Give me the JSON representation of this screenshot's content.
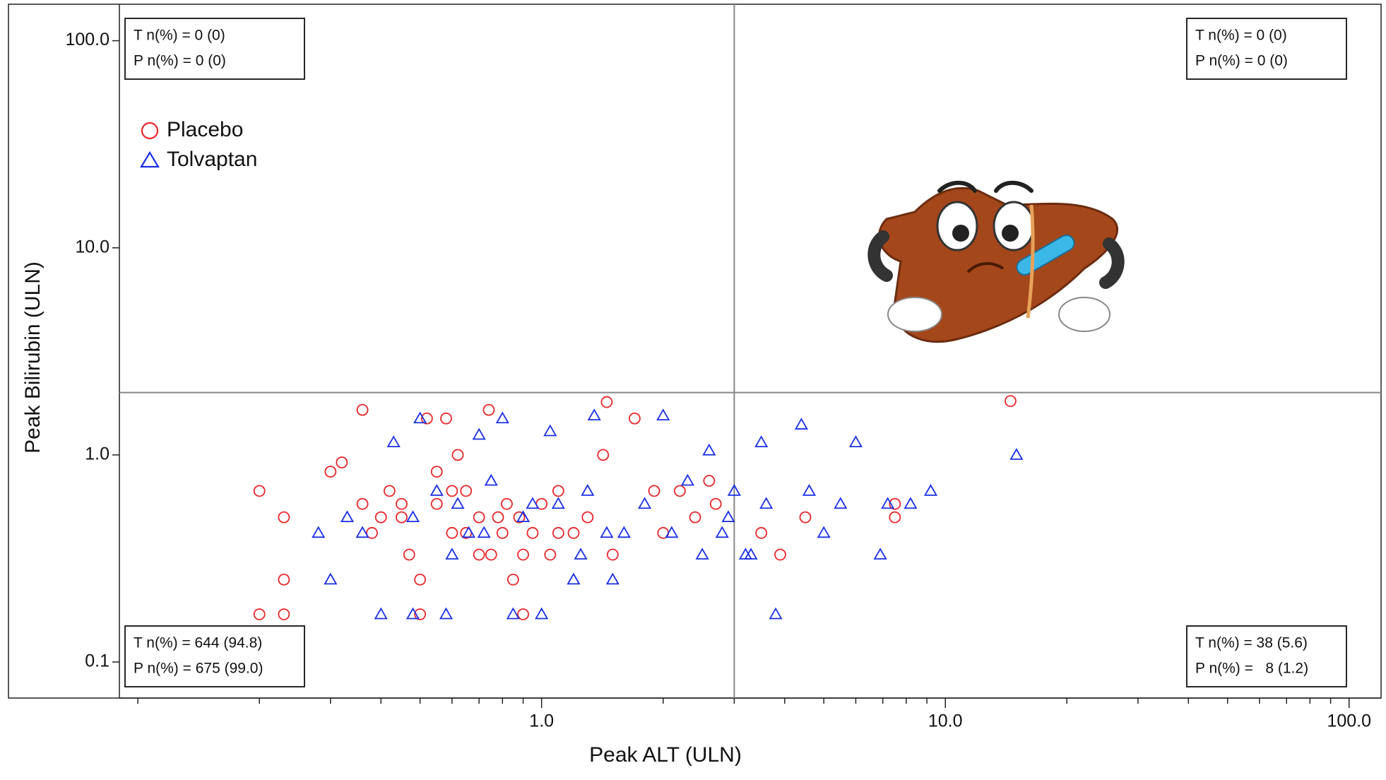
{
  "chart_data": {
    "type": "scatter",
    "x_label": "Peak ALT (ULN)",
    "y_label": "Peak Bilirubin (ULN)",
    "log_x": true,
    "log_y": true,
    "xlim": [
      0.09,
      120
    ],
    "ylim": [
      0.067,
      150
    ],
    "xticks": [
      {
        "value": 1,
        "label": "1.0"
      },
      {
        "value": 10,
        "label": "10.0"
      },
      {
        "value": 100,
        "label": "100.0"
      }
    ],
    "xminor_ticks": [
      0.1,
      0.2,
      0.3,
      0.4,
      0.5,
      0.6,
      0.7,
      0.8,
      0.9,
      2,
      3,
      4,
      5,
      6,
      7,
      8,
      9,
      20,
      30,
      40,
      50,
      60,
      70,
      80,
      90
    ],
    "yticks": [
      0.1,
      {
        "value": 1,
        "label": "1.0"
      },
      {
        "value": 10,
        "label": "10.0"
      },
      {
        "value": 100,
        "label": "100.0"
      }
    ],
    "reference_lines": {
      "x": 3,
      "y": 2
    },
    "legend_position": "upper-left",
    "annotations": [
      {
        "position": "top-left",
        "lines": [
          "T n(%) = 0 (0)",
          "P n(%) = 0 (0)"
        ]
      },
      {
        "position": "top-right",
        "lines": [
          "T n(%) = 0 (0)",
          "P n(%) = 0 (0)"
        ]
      },
      {
        "position": "bottom-left",
        "lines": [
          "T n(%) = 644 (94.8)",
          "P n(%) = 675 (99.0)"
        ]
      },
      {
        "position": "bottom-right",
        "lines": [
          "T n(%) = 38 (5.6)",
          "P n(%) =   8 (1.2)"
        ]
      }
    ],
    "series": [
      {
        "name": "Placebo",
        "color": "#e8262a",
        "marker": "circle",
        "x": [
          0.2,
          0.2,
          0.23,
          0.23,
          0.23,
          0.3,
          0.32,
          0.36,
          0.36,
          0.38,
          0.42,
          0.45,
          0.47,
          0.5,
          0.52,
          0.55,
          0.58,
          0.6,
          0.62,
          0.65,
          0.7,
          0.74,
          0.78,
          0.82,
          0.85,
          0.9,
          0.95,
          1.0,
          1.05,
          1.1,
          1.2,
          1.3,
          1.42,
          1.45,
          1.5,
          1.7,
          1.9,
          2.0,
          2.2,
          2.4,
          2.6,
          2.7,
          3.5,
          3.9,
          4.5,
          7.5,
          7.5,
          14.5,
          0.4,
          0.55,
          0.65,
          0.75,
          0.88,
          1.1,
          0.5,
          0.6,
          0.7,
          0.8,
          0.45,
          0.9
        ],
        "values": [
          0.67,
          0.17,
          0.17,
          0.5,
          0.25,
          0.83,
          0.92,
          1.65,
          0.58,
          0.42,
          0.67,
          0.5,
          0.33,
          0.17,
          1.5,
          0.83,
          1.5,
          0.42,
          1.0,
          0.67,
          0.33,
          1.65,
          0.5,
          0.58,
          0.25,
          0.17,
          0.42,
          0.58,
          0.33,
          0.67,
          0.42,
          0.5,
          1.0,
          1.8,
          0.33,
          1.5,
          0.67,
          0.42,
          0.67,
          0.5,
          0.75,
          0.58,
          0.42,
          0.33,
          0.5,
          0.58,
          0.5,
          1.82,
          0.5,
          0.58,
          0.42,
          0.33,
          0.5,
          0.42,
          0.25,
          0.67,
          0.5,
          0.42,
          0.58,
          0.33
        ]
      },
      {
        "name": "Tolvaptan",
        "color": "#1a2ee6",
        "marker": "triangle",
        "x": [
          0.28,
          0.3,
          0.33,
          0.36,
          0.4,
          0.43,
          0.48,
          0.5,
          0.55,
          0.58,
          0.62,
          0.66,
          0.7,
          0.75,
          0.8,
          0.85,
          0.9,
          1.0,
          1.05,
          1.1,
          1.2,
          1.3,
          1.35,
          1.5,
          1.6,
          1.8,
          2.0,
          2.1,
          2.3,
          2.5,
          2.6,
          2.8,
          3.0,
          3.2,
          3.5,
          3.6,
          3.8,
          4.4,
          4.6,
          5.0,
          5.5,
          6.0,
          6.9,
          7.2,
          8.2,
          9.2,
          15,
          0.48,
          0.6,
          0.72,
          0.95,
          1.25,
          1.45,
          2.9,
          3.3
        ],
        "values": [
          0.42,
          0.25,
          0.5,
          0.42,
          0.17,
          1.15,
          0.17,
          1.5,
          0.67,
          0.17,
          0.58,
          0.42,
          1.25,
          0.75,
          1.5,
          0.17,
          0.5,
          0.17,
          1.3,
          0.58,
          0.25,
          0.67,
          1.55,
          0.25,
          0.42,
          0.58,
          1.55,
          0.42,
          0.75,
          0.33,
          1.05,
          0.42,
          0.67,
          0.33,
          1.15,
          0.58,
          0.17,
          1.4,
          0.67,
          0.42,
          0.58,
          1.15,
          0.33,
          0.58,
          0.58,
          0.67,
          1.0,
          0.5,
          0.33,
          0.42,
          0.58,
          0.33,
          0.42,
          0.5,
          0.33
        ]
      }
    ]
  }
}
